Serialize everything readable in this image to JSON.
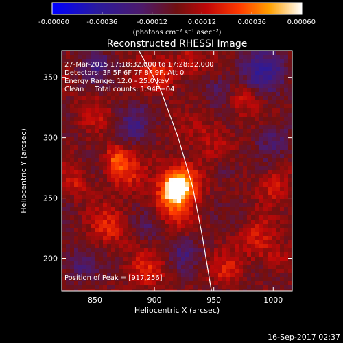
{
  "colorbar": {
    "tick_labels": [
      "-0.00060",
      "-0.00036",
      "-0.00012",
      "0.00012",
      "0.00036",
      "0.00060"
    ],
    "tick_values": [
      -0.0006,
      -0.00036,
      -0.00012,
      0.00012,
      0.00036,
      0.0006
    ],
    "range": [
      -0.0006,
      0.0006
    ],
    "unit_label": "(photons cm⁻² s⁻¹ asec⁻²)",
    "stops": [
      {
        "offset": 0.0,
        "color": "#0000ff"
      },
      {
        "offset": 0.18,
        "color": "#2a1a9e"
      },
      {
        "offset": 0.36,
        "color": "#4d1a6a"
      },
      {
        "offset": 0.5,
        "color": "#701010"
      },
      {
        "offset": 0.62,
        "color": "#c00808"
      },
      {
        "offset": 0.75,
        "color": "#ff3a00"
      },
      {
        "offset": 0.87,
        "color": "#ffa000"
      },
      {
        "offset": 1.0,
        "color": "#ffffff"
      }
    ]
  },
  "chart_data": {
    "type": "heatmap",
    "title": "Reconstructed RHESSI Image",
    "xlabel": "Heliocentric X (arcsec)",
    "ylabel": "Heliocentric Y (arcsec)",
    "xlim": [
      822,
      1016
    ],
    "ylim": [
      173,
      372
    ],
    "x_ticks": [
      850,
      900,
      950,
      1000
    ],
    "y_ticks": [
      200,
      250,
      300,
      350
    ],
    "grid": false,
    "annotations": {
      "time": "27-Mar-2015 17:18:32.000 to 17:28:32.000",
      "detectors": "Detectors: 3F 5F 6F 7F 8F 9F, Att 0",
      "energy": "Energy Range: 12.0 - 25.0 keV",
      "clean": "Clean     Total counts: 1.94E+04",
      "peak": "Position of Peak = [917,256]"
    },
    "peak": [
      917,
      256
    ],
    "limb_curve": [
      [
        887,
        372
      ],
      [
        905,
        340
      ],
      [
        920,
        300
      ],
      [
        932,
        260
      ],
      [
        940,
        220
      ],
      [
        948,
        173
      ]
    ],
    "sources": [
      {
        "x": 918,
        "y": 257,
        "amp": 1.0,
        "sigma": 7
      },
      {
        "x": 924,
        "y": 266,
        "amp": 0.6,
        "sigma": 11
      },
      {
        "x": 915,
        "y": 245,
        "amp": 0.4,
        "sigma": 12
      },
      {
        "x": 868,
        "y": 282,
        "amp": 0.5,
        "sigma": 8
      },
      {
        "x": 875,
        "y": 268,
        "amp": 0.3,
        "sigma": 10
      },
      {
        "x": 905,
        "y": 352,
        "amp": 0.35,
        "sigma": 10
      },
      {
        "x": 930,
        "y": 362,
        "amp": 0.3,
        "sigma": 9
      },
      {
        "x": 975,
        "y": 332,
        "amp": 0.3,
        "sigma": 10
      },
      {
        "x": 1000,
        "y": 262,
        "amp": 0.35,
        "sigma": 9
      },
      {
        "x": 985,
        "y": 215,
        "amp": 0.3,
        "sigma": 11
      },
      {
        "x": 1002,
        "y": 200,
        "amp": 0.25,
        "sigma": 8
      },
      {
        "x": 862,
        "y": 225,
        "amp": 0.3,
        "sigma": 11
      },
      {
        "x": 835,
        "y": 262,
        "amp": 0.25,
        "sigma": 8
      },
      {
        "x": 895,
        "y": 190,
        "amp": 0.3,
        "sigma": 10
      },
      {
        "x": 960,
        "y": 190,
        "amp": 0.25,
        "sigma": 9
      },
      {
        "x": 950,
        "y": 300,
        "amp": 0.22,
        "sigma": 12
      },
      {
        "x": 848,
        "y": 320,
        "amp": 0.2,
        "sigma": 9
      }
    ],
    "sinks": [
      {
        "x": 990,
        "y": 355,
        "amp": 0.45,
        "sigma": 14
      },
      {
        "x": 955,
        "y": 340,
        "amp": 0.3,
        "sigma": 9
      },
      {
        "x": 880,
        "y": 310,
        "amp": 0.32,
        "sigma": 10
      },
      {
        "x": 850,
        "y": 360,
        "amp": 0.3,
        "sigma": 9
      },
      {
        "x": 1000,
        "y": 300,
        "amp": 0.3,
        "sigma": 10
      },
      {
        "x": 835,
        "y": 195,
        "amp": 0.3,
        "sigma": 9
      },
      {
        "x": 925,
        "y": 205,
        "amp": 0.25,
        "sigma": 9
      },
      {
        "x": 960,
        "y": 275,
        "amp": 0.22,
        "sigma": 8
      },
      {
        "x": 895,
        "y": 225,
        "amp": 0.2,
        "sigma": 8
      }
    ]
  },
  "footer": {
    "timestamp": "16-Sep-2017 02:37"
  }
}
